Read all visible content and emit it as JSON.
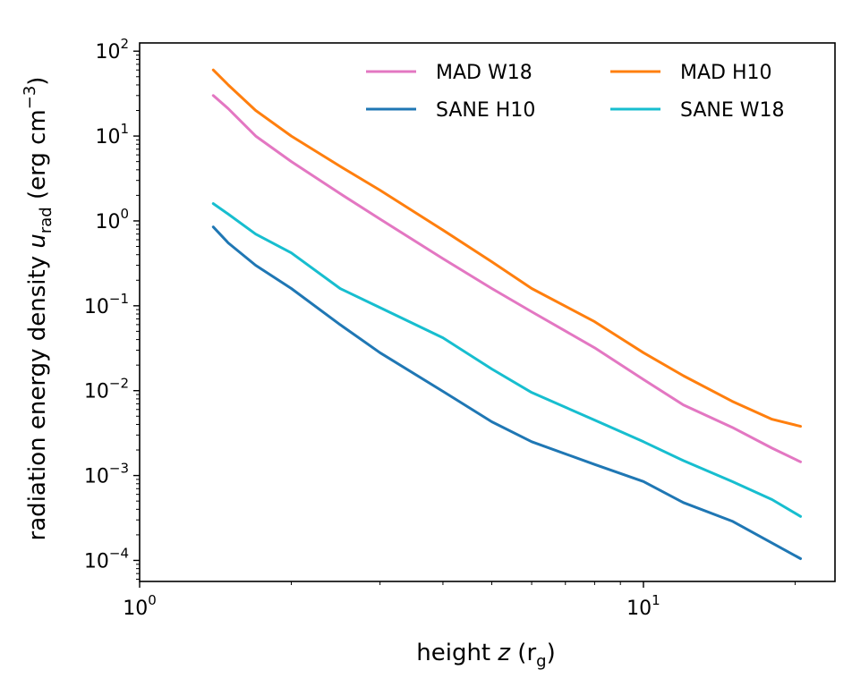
{
  "chart_data": {
    "type": "line",
    "xlabel": "height z (rg)",
    "ylabel": "radiation energy density urad (erg cm−3)",
    "xscale": "log",
    "yscale": "log",
    "xlim": [
      1.0,
      24.0
    ],
    "ylim": [
      5.65e-05,
      125
    ],
    "x_ticks": [
      {
        "value": 1,
        "base": "10",
        "exp": "0"
      },
      {
        "value": 10,
        "base": "10",
        "exp": "1"
      }
    ],
    "y_ticks": [
      {
        "value": 100,
        "base": "10",
        "exp": "2"
      },
      {
        "value": 10,
        "base": "10",
        "exp": "1"
      },
      {
        "value": 1,
        "base": "10",
        "exp": "0"
      },
      {
        "value": 0.1,
        "base": "10",
        "exp": "−1"
      },
      {
        "value": 0.01,
        "base": "10",
        "exp": "−2"
      },
      {
        "value": 0.001,
        "base": "10",
        "exp": "−3"
      },
      {
        "value": 0.0001,
        "base": "10",
        "exp": "−4"
      }
    ],
    "grid": false,
    "legend": {
      "position": "top-right",
      "columns": 2
    },
    "series": [
      {
        "name": "MAD W18",
        "color": "#e377c2",
        "x": [
          1.4,
          1.5,
          1.7,
          2.0,
          2.5,
          3.0,
          4.0,
          5.0,
          6.0,
          8.0,
          10.0,
          12.0,
          15.0,
          18.0,
          20.5
        ],
        "y": [
          30,
          21,
          10,
          5.0,
          2.1,
          1.05,
          0.36,
          0.16,
          0.085,
          0.032,
          0.0135,
          0.0068,
          0.0037,
          0.0021,
          0.00145
        ]
      },
      {
        "name": "MAD H10",
        "color": "#ff7f0e",
        "x": [
          1.4,
          1.5,
          1.7,
          2.0,
          2.5,
          3.0,
          4.0,
          5.0,
          6.0,
          8.0,
          10.0,
          12.0,
          15.0,
          18.0,
          20.5
        ],
        "y": [
          60,
          40,
          20,
          10,
          4.4,
          2.3,
          0.78,
          0.33,
          0.16,
          0.065,
          0.028,
          0.015,
          0.0075,
          0.0046,
          0.0038
        ]
      },
      {
        "name": "SANE H10",
        "color": "#1f77b4",
        "x": [
          1.4,
          1.5,
          1.7,
          2.0,
          2.5,
          3.0,
          4.0,
          5.0,
          6.0,
          8.0,
          10.0,
          12.0,
          15.0,
          18.0,
          20.5
        ],
        "y": [
          0.85,
          0.55,
          0.3,
          0.16,
          0.06,
          0.028,
          0.0098,
          0.0043,
          0.0025,
          0.00135,
          0.00085,
          0.00048,
          0.00029,
          0.00016,
          0.000105
        ]
      },
      {
        "name": "SANE W18",
        "color": "#17becf",
        "x": [
          1.4,
          1.5,
          1.7,
          2.0,
          2.5,
          3.0,
          4.0,
          5.0,
          6.0,
          8.0,
          10.0,
          12.0,
          15.0,
          18.0,
          20.5
        ],
        "y": [
          1.6,
          1.2,
          0.7,
          0.42,
          0.16,
          0.095,
          0.042,
          0.018,
          0.0095,
          0.0045,
          0.0025,
          0.0015,
          0.00085,
          0.00052,
          0.00033
        ]
      }
    ],
    "legend_order": [
      "MAD W18",
      "MAD H10",
      "SANE H10",
      "SANE W18"
    ]
  }
}
